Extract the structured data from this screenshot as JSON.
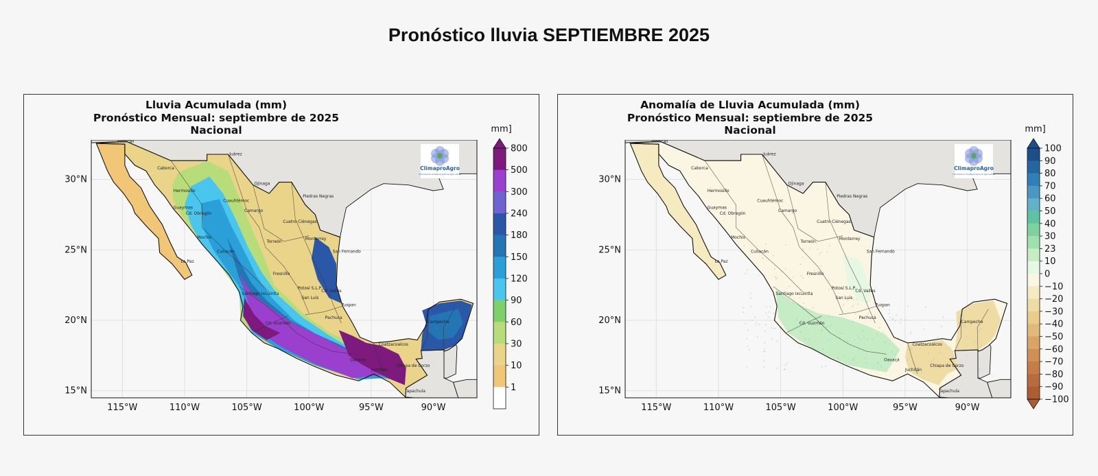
{
  "page": {
    "title": "Pronóstico lluvia SEPTIEMBRE 2025"
  },
  "panels": [
    {
      "title_lines": [
        "Lluvia Acumulada (mm)",
        "Pronóstico Mensual: septiembre de 2025",
        "Nacional"
      ],
      "colorbar": {
        "unit": "[mm]",
        "ticks": [
          "800",
          "500",
          "300",
          "240",
          "180",
          "150",
          "120",
          "90",
          "60",
          "30",
          "10",
          "1"
        ],
        "colors": [
          "#7e1a7e",
          "#9b3fcf",
          "#6e63d3",
          "#2b57a8",
          "#2475b4",
          "#2a9fd8",
          "#4ac6ee",
          "#7fcf6a",
          "#b9dc7a",
          "#e9d489",
          "#f1c677",
          "#ffffff"
        ],
        "extend": "max"
      }
    },
    {
      "title_lines": [
        "Anomalía de Lluvia Acumulada (mm)",
        "Pronóstico Mensual: septiembre de 2025",
        "Nacional"
      ],
      "colorbar": {
        "unit": "[mm]",
        "ticks": [
          "100",
          "90",
          "80",
          "70",
          "60",
          "50",
          "40",
          "30",
          "23",
          "10",
          "0",
          "−10",
          "−20",
          "−30",
          "−40",
          "−50",
          "−60",
          "−70",
          "−80",
          "−90",
          "−100"
        ],
        "colors": [
          "#1d4e8a",
          "#2466a3",
          "#2f7fb8",
          "#4a97c6",
          "#63b1c9",
          "#5ec3a2",
          "#7fd2a0",
          "#a0dfae",
          "#c5ecc4",
          "#e6f7e4",
          "#fbf6e3",
          "#f5eac0",
          "#efdca4",
          "#e8cc8c",
          "#e1b978",
          "#d9a466",
          "#cf8f55",
          "#c57c48",
          "#b96b3d",
          "#ad5c33"
        ],
        "extend": "both"
      }
    }
  ],
  "map": {
    "lon_ticks": [
      "115°W",
      "110°W",
      "105°W",
      "100°W",
      "95°W",
      "90°W"
    ],
    "lat_ticks": [
      "30°N",
      "25°N",
      "20°N",
      "15°N"
    ],
    "extent": {
      "lon": [
        -117.5,
        -86.5
      ],
      "lat": [
        14.5,
        32.8
      ]
    },
    "grid": true,
    "logo": {
      "name": "ClimaproAgro",
      "tagline": "Información Climática para la Agricultura"
    },
    "cities": [
      {
        "name": "Mexicali",
        "lon": -115.4,
        "lat": 32.6
      },
      {
        "name": "Juárez",
        "lon": -106.4,
        "lat": 31.7
      },
      {
        "name": "Caborca",
        "lon": -112.2,
        "lat": 30.7
      },
      {
        "name": "Hermosillo",
        "lon": -110.9,
        "lat": 29.1
      },
      {
        "name": "Ojinaga",
        "lon": -104.4,
        "lat": 29.6
      },
      {
        "name": "Piedras Negras",
        "lon": -100.5,
        "lat": 28.7
      },
      {
        "name": "Guaymas",
        "lon": -110.9,
        "lat": 27.9
      },
      {
        "name": "Cd. Obregón",
        "lon": -109.9,
        "lat": 27.5
      },
      {
        "name": "Cuauhtémoc",
        "lon": -106.9,
        "lat": 28.4
      },
      {
        "name": "Camargo",
        "lon": -105.2,
        "lat": 27.7
      },
      {
        "name": "Cuatro Ciénegas",
        "lon": -102.1,
        "lat": 26.9
      },
      {
        "name": "Monterrey",
        "lon": -100.3,
        "lat": 25.7
      },
      {
        "name": "Mochis",
        "lon": -109.0,
        "lat": 25.8
      },
      {
        "name": "Torreón",
        "lon": -103.4,
        "lat": 25.5
      },
      {
        "name": "San Fernando",
        "lon": -98.1,
        "lat": 24.8
      },
      {
        "name": "Culiacán",
        "lon": -107.4,
        "lat": 24.8
      },
      {
        "name": "La Paz",
        "lon": -110.3,
        "lat": 24.1
      },
      {
        "name": "Fresnillo",
        "lon": -102.9,
        "lat": 23.2
      },
      {
        "name": "Potosí S.L.P.",
        "lon": -100.9,
        "lat": 22.2
      },
      {
        "name": "Cd. Valles",
        "lon": -99.0,
        "lat": 22.0
      },
      {
        "name": "Santiago Ixcuintla",
        "lon": -105.4,
        "lat": 21.8
      },
      {
        "name": "San Luis",
        "lon": -100.6,
        "lat": 21.5
      },
      {
        "name": "Tuxpan",
        "lon": -97.4,
        "lat": 21.0
      },
      {
        "name": "Cd. Guzmán",
        "lon": -103.5,
        "lat": 19.7
      },
      {
        "name": "Pachuca",
        "lon": -98.7,
        "lat": 20.1
      },
      {
        "name": "Coatzacoalcos",
        "lon": -94.4,
        "lat": 18.2
      },
      {
        "name": "Campeche",
        "lon": -90.5,
        "lat": 19.8
      },
      {
        "name": "Juchitán",
        "lon": -95.0,
        "lat": 16.4
      },
      {
        "name": "Chiapa de Corzo",
        "lon": -93.0,
        "lat": 16.7
      },
      {
        "name": "Oaxaca",
        "lon": -96.7,
        "lat": 17.1
      },
      {
        "name": "Tapachula",
        "lon": -92.3,
        "lat": 14.9
      }
    ]
  }
}
